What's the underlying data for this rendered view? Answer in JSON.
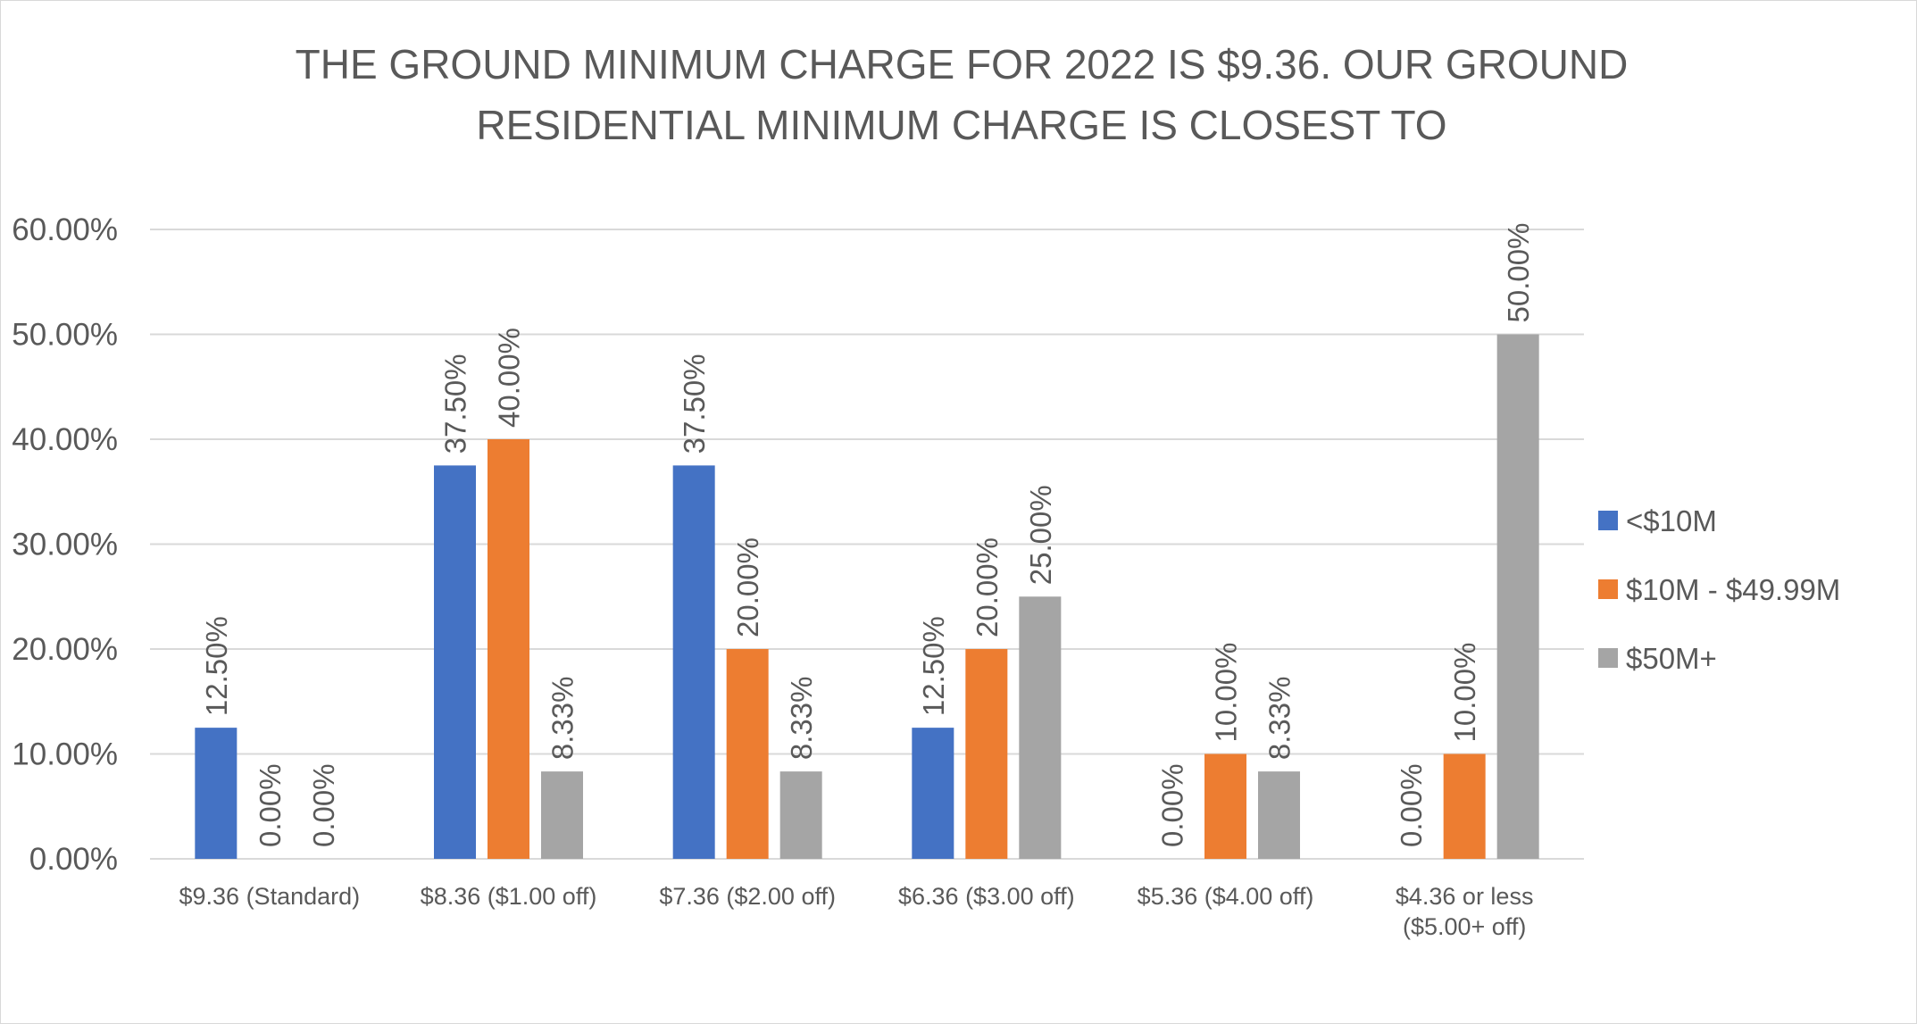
{
  "chart_data": {
    "type": "bar",
    "title_lines": [
      "THE GROUND MINIMUM CHARGE FOR 2022 IS $9.36. OUR GROUND",
      "RESIDENTIAL MINIMUM CHARGE IS CLOSEST TO"
    ],
    "categories": [
      [
        "$9.36 (Standard)"
      ],
      [
        "$8.36 ($1.00 off)"
      ],
      [
        "$7.36 ($2.00 off)"
      ],
      [
        "$6.36 ($3.00 off)"
      ],
      [
        "$5.36 ($4.00 off)"
      ],
      [
        "$4.36 or less",
        "($5.00+ off)"
      ]
    ],
    "series": [
      {
        "name": "<$10M",
        "color": "#4472c4",
        "values": [
          12.5,
          37.5,
          37.5,
          12.5,
          0,
          0
        ],
        "labels": [
          "12.50%",
          "37.50%",
          "37.50%",
          "12.50%",
          "0.00%",
          "0.00%"
        ]
      },
      {
        "name": "$10M - $49.99M",
        "color": "#ed7d31",
        "values": [
          0,
          40,
          20,
          20,
          10,
          10
        ],
        "labels": [
          "0.00%",
          "40.00%",
          "20.00%",
          "20.00%",
          "10.00%",
          "10.00%"
        ]
      },
      {
        "name": "$50M+",
        "color": "#a5a5a5",
        "values": [
          0,
          8.33,
          8.33,
          25,
          8.33,
          50
        ],
        "labels": [
          "0.00%",
          "8.33%",
          "8.33%",
          "25.00%",
          "8.33%",
          "50.00%"
        ]
      }
    ],
    "yticks": [
      "0.00%",
      "10.00%",
      "20.00%",
      "30.00%",
      "40.00%",
      "50.00%",
      "60.00%"
    ],
    "ylim": [
      0,
      60
    ],
    "ytick_step": 10,
    "grid": true,
    "gridline_color": "#d9d9d9",
    "legend_position": "right",
    "xlabel": "",
    "ylabel": ""
  }
}
